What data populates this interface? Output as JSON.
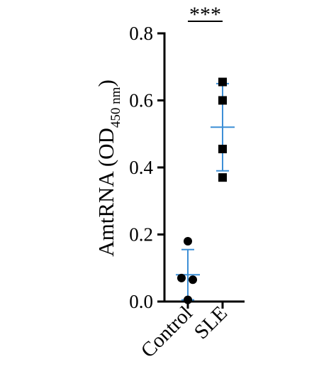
{
  "chart_data": {
    "type": "scatter",
    "ylabel_main": "AmtRNA (OD",
    "ylabel_sub": "450 nm",
    "ylabel_close": ")",
    "ylim": [
      0,
      0.8
    ],
    "yticks": [
      "0.0",
      "0.2",
      "0.4",
      "0.6",
      "0.8"
    ],
    "categories": [
      "Control",
      "SLE"
    ],
    "significance": "***",
    "series": [
      {
        "category": "Control",
        "marker": "circle",
        "values": [
          0.18,
          0.07,
          0.065,
          0.005
        ],
        "mean": 0.08,
        "sd_low": 0.005,
        "sd_high": 0.155
      },
      {
        "category": "SLE",
        "marker": "square",
        "values": [
          0.655,
          0.6,
          0.455,
          0.37
        ],
        "mean": 0.52,
        "sd_low": 0.39,
        "sd_high": 0.65
      }
    ],
    "error_bar_color": "#3d8fd6",
    "point_color": "#000000"
  }
}
